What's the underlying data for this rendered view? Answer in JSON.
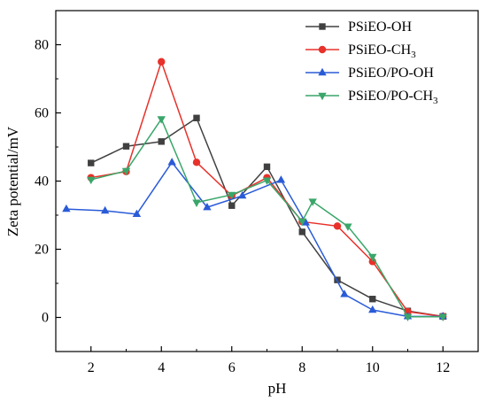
{
  "chart_data": {
    "type": "line",
    "xlabel": "pH",
    "ylabel": "Zeta potential/mV",
    "xlim": [
      1,
      13
    ],
    "ylim": [
      -10,
      90
    ],
    "xticks": [
      2,
      4,
      6,
      8,
      10,
      12
    ],
    "yticks": [
      0,
      20,
      40,
      60,
      80
    ],
    "grid": false,
    "legend_position": "top-right",
    "series": [
      {
        "name": "PSiEO-OH",
        "name_main": "PSiEO-OH",
        "name_sub": "",
        "color": "#404040",
        "marker": "square",
        "x": [
          2.0,
          3.0,
          4.0,
          5.0,
          6.0,
          7.0,
          8.0,
          9.0,
          10.0,
          11.0,
          12.0
        ],
        "y": [
          45.3,
          50.2,
          51.6,
          58.5,
          32.8,
          44.2,
          25.1,
          11.0,
          5.4,
          1.9,
          0.3
        ]
      },
      {
        "name": "PSiEO-CH3",
        "name_main": "PSiEO-CH",
        "name_sub": "3",
        "color": "#e8312a",
        "marker": "circle",
        "x": [
          2.0,
          3.0,
          4.0,
          5.0,
          6.0,
          7.0,
          8.0,
          9.0,
          10.0,
          11.0,
          12.0
        ],
        "y": [
          41.0,
          42.8,
          75.0,
          45.5,
          35.7,
          41.0,
          28.1,
          26.8,
          16.4,
          1.7,
          0.3
        ]
      },
      {
        "name": "PSiEO/PO-OH",
        "name_main": "PSiEO/PO-OH",
        "name_sub": "",
        "color": "#2a5bd7",
        "marker": "triangle-up",
        "x": [
          1.3,
          2.4,
          3.3,
          4.3,
          5.3,
          6.3,
          7.4,
          8.1,
          9.2,
          10.0,
          11.0,
          12.0
        ],
        "y": [
          31.8,
          31.3,
          30.3,
          45.5,
          32.3,
          35.7,
          40.3,
          27.8,
          6.8,
          2.2,
          0.3,
          0.3
        ]
      },
      {
        "name": "PSiEO/PO-CH3",
        "name_main": "PSiEO/PO-CH",
        "name_sub": "3",
        "color": "#3aa66a",
        "marker": "triangle-down",
        "x": [
          2.0,
          3.0,
          4.0,
          5.0,
          6.0,
          7.0,
          8.0,
          8.3,
          9.3,
          10.0,
          11.0,
          12.0
        ],
        "y": [
          40.4,
          43.0,
          58.2,
          33.7,
          36.0,
          40.2,
          28.2,
          34.0,
          26.7,
          17.8,
          0.2,
          0.2
        ]
      }
    ]
  }
}
